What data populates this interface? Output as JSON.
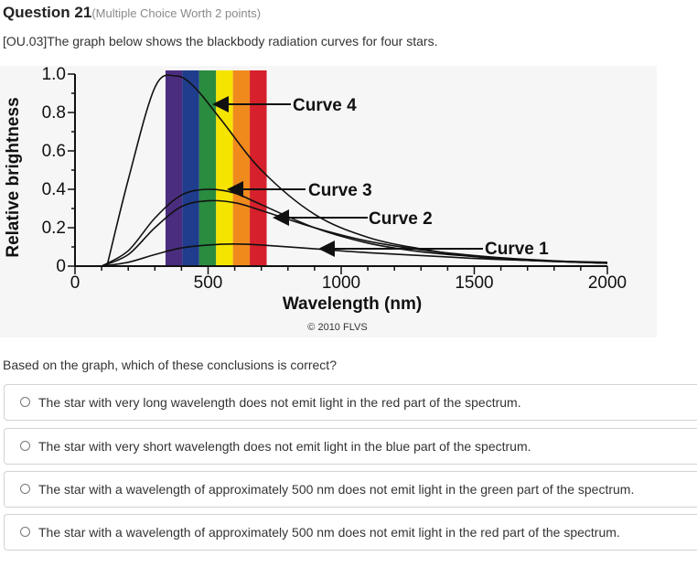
{
  "question": {
    "title": "Question 21",
    "worth": "(Multiple Choice Worth 2 points)",
    "text": "[OU.03]The graph below shows the blackbody radiation curves for four stars."
  },
  "chart_data": {
    "type": "line",
    "xlabel": "Wavelength (nm)",
    "ylabel": "Relative brightness",
    "xlim": [
      0,
      2000
    ],
    "ylim": [
      0,
      1.0
    ],
    "x_ticks": [
      "0",
      "500",
      "1000",
      "1500",
      "2000"
    ],
    "y_ticks": [
      "0",
      "0.2",
      "0.4",
      "0.6",
      "0.8",
      "1.0"
    ],
    "grid": false,
    "visible_spectrum_nm": [
      340,
      720
    ],
    "spectrum_colors": [
      "#4b2d7f",
      "#1f3d8c",
      "#2a8c3f",
      "#f5e400",
      "#f08a1d",
      "#d6202b"
    ],
    "series": [
      {
        "name": "Curve 4",
        "x": [
          120,
          200,
          300,
          380,
          450,
          550,
          700,
          900,
          1100,
          1300,
          1500,
          1700,
          2000
        ],
        "y": [
          0.0,
          0.45,
          0.93,
          0.99,
          0.93,
          0.76,
          0.5,
          0.27,
          0.15,
          0.09,
          0.05,
          0.03,
          0.015
        ]
      },
      {
        "name": "Curve 3",
        "x": [
          100,
          200,
          300,
          400,
          500,
          600,
          700,
          900,
          1100,
          1300,
          1500,
          1700,
          2000
        ],
        "y": [
          0.0,
          0.08,
          0.25,
          0.37,
          0.4,
          0.38,
          0.32,
          0.2,
          0.12,
          0.075,
          0.05,
          0.03,
          0.015
        ]
      },
      {
        "name": "Curve 2",
        "x": [
          100,
          200,
          300,
          400,
          500,
          600,
          700,
          900,
          1100,
          1300,
          1500,
          1700,
          2000
        ],
        "y": [
          0.0,
          0.06,
          0.2,
          0.31,
          0.34,
          0.33,
          0.29,
          0.2,
          0.13,
          0.085,
          0.055,
          0.035,
          0.015
        ]
      },
      {
        "name": "Curve 1",
        "x": [
          100,
          200,
          300,
          400,
          500,
          600,
          700,
          900,
          1100,
          1300,
          1500,
          1700,
          2000
        ],
        "y": [
          0.0,
          0.02,
          0.06,
          0.095,
          0.11,
          0.115,
          0.11,
          0.09,
          0.07,
          0.055,
          0.04,
          0.03,
          0.02
        ]
      }
    ],
    "annotations": [
      "Curve 4",
      "Curve 3",
      "Curve 2",
      "Curve 1"
    ],
    "credit": "© 2010 FLVS"
  },
  "prompt": "Based on the graph, which of these conclusions is correct?",
  "choices": [
    "The star with very long wavelength does not emit light in the red part of the spectrum.",
    "The star with very short wavelength does not emit light in the blue part of the spectrum.",
    "The star with a wavelength of approximately 500 nm does not emit light in the green part of the spectrum.",
    "The star with a wavelength of approximately 500 nm does not emit light in the red part of the spectrum."
  ]
}
